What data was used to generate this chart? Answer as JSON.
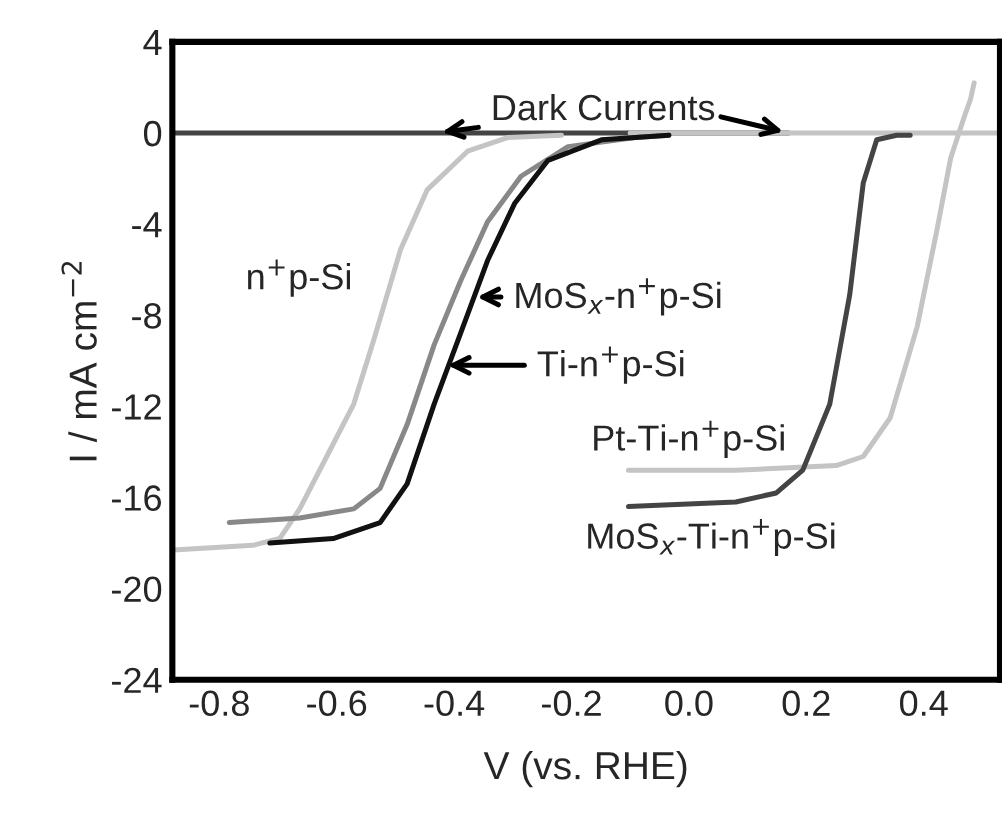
{
  "chart_data": {
    "type": "line",
    "xlabel": "V (vs. RHE)",
    "ylabel": "I / mA cm$^{−2}$",
    "xlim": [
      -0.88,
      0.53
    ],
    "ylim": [
      -24,
      4
    ],
    "xticks": [
      {
        "value": -0.8,
        "label": "-0.8"
      },
      {
        "value": -0.6,
        "label": "-0.6"
      },
      {
        "value": -0.4,
        "label": "-0.4"
      },
      {
        "value": -0.2,
        "label": "-0.2"
      },
      {
        "value": 0,
        "label": "0.0"
      },
      {
        "value": 0.2,
        "label": "0.2"
      },
      {
        "value": 0.4,
        "label": "0.4"
      }
    ],
    "yticks": [
      -24,
      -20,
      -16,
      -12,
      -8,
      -4,
      0,
      4
    ],
    "grid": false,
    "series": [
      {
        "color": "#444444",
        "x": [
          -0.88,
          0.17
        ],
        "values": [
          0,
          0
        ]
      },
      {
        "color": "#c4c4c4",
        "x": [
          -0.1,
          0.53
        ],
        "values": [
          0,
          0
        ]
      },
      {
        "color": "#c4c4c4",
        "x": [
          -0.878,
          -0.743,
          -0.697,
          -0.663,
          -0.617,
          -0.571,
          -0.537,
          -0.491,
          -0.446,
          -0.377,
          -0.309,
          -0.217
        ],
        "values": [
          -18.3,
          -18.1,
          -17.8,
          -16.5,
          -14.2,
          -11.9,
          -9.1,
          -5.1,
          -2.5,
          -0.8,
          -0.2,
          -0.1
        ]
      },
      {
        "color": "#888888",
        "x": [
          -0.783,
          -0.663,
          -0.571,
          -0.526,
          -0.48,
          -0.434,
          -0.389,
          -0.343,
          -0.286,
          -0.206,
          -0.091,
          -0.034
        ],
        "values": [
          -17.1,
          -16.9,
          -16.5,
          -15.6,
          -12.8,
          -9.3,
          -6.5,
          -3.9,
          -1.9,
          -0.6,
          -0.2,
          -0.1
        ]
      },
      {
        "color": "#111111",
        "x": [
          -0.714,
          -0.606,
          -0.526,
          -0.48,
          -0.434,
          -0.389,
          -0.343,
          -0.297,
          -0.24,
          -0.149,
          -0.034
        ],
        "values": [
          -18.0,
          -17.8,
          -17.1,
          -15.4,
          -11.9,
          -8.8,
          -5.6,
          -3.1,
          -1.2,
          -0.3,
          -0.1
        ]
      },
      {
        "color": "#c4c4c4",
        "x": [
          -0.103,
          0.08,
          0.251,
          0.297,
          0.343,
          0.389,
          0.423,
          0.446,
          0.469,
          0.48,
          0.486
        ],
        "values": [
          -14.8,
          -14.8,
          -14.6,
          -14.2,
          -12.5,
          -8.5,
          -4.2,
          -1.1,
          0.7,
          1.5,
          2.2
        ]
      },
      {
        "color": "#444444",
        "x": [
          -0.103,
          0.08,
          0.149,
          0.194,
          0.24,
          0.274,
          0.297,
          0.32,
          0.354,
          0.377
        ],
        "values": [
          -16.4,
          -16.2,
          -15.8,
          -14.8,
          -11.9,
          -7.1,
          -2.2,
          -0.3,
          -0.1,
          -0.1
        ]
      }
    ],
    "annotations": [
      {
        "text": "Dark Currents",
        "x": -0.43,
        "y": 0
      },
      {
        "text": "n$^{+}$p-Si",
        "x": -0.56,
        "y": -11.5
      },
      {
        "text": "MoS$_{x}$-n$^{+}$p-Si",
        "x": -0.37,
        "y": -7.2
      },
      {
        "text": "Ti-n$^{+}$p-Si",
        "x": -0.42,
        "y": -10.2
      },
      {
        "text": "Pt-Ti-n$^{+}$p-Si",
        "x": 0.0,
        "y": -14.8
      },
      {
        "text": "MoS$_{x}$-Ti-n$^{+}$p-Si",
        "x": 0.0,
        "y": -16.3
      }
    ]
  }
}
